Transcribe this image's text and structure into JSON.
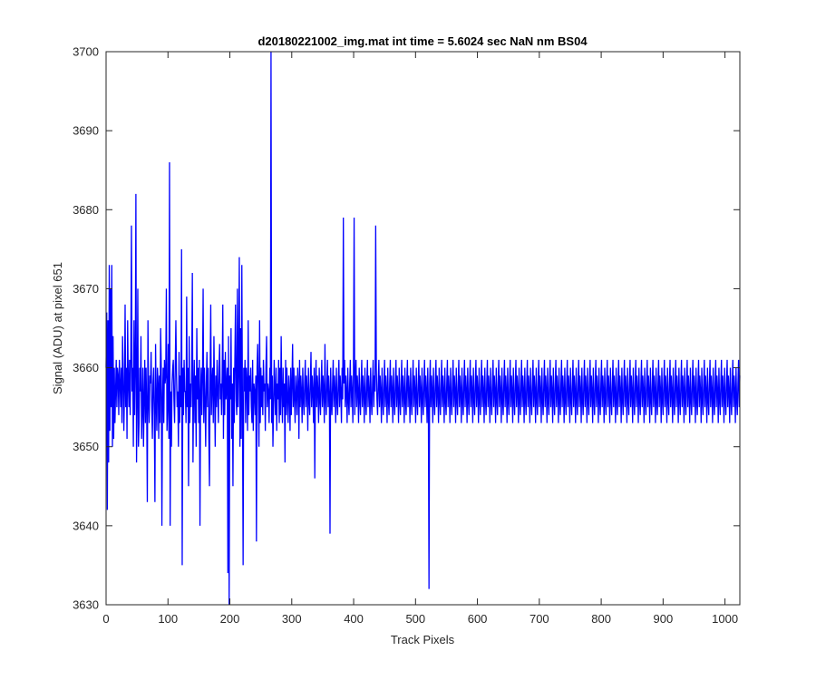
{
  "chart_data": {
    "type": "line",
    "title": "d20180221002_img.mat int time = 5.6024 sec  NaN nm BS04",
    "xlabel": "Track Pixels",
    "ylabel": "Signal (ADU) at pixel 651",
    "xlim": [
      0,
      1024
    ],
    "ylim": [
      3630,
      3700
    ],
    "xticks": [
      0,
      100,
      200,
      300,
      400,
      500,
      600,
      700,
      800,
      900,
      1000
    ],
    "yticks": [
      3630,
      3640,
      3650,
      3660,
      3670,
      3680,
      3690,
      3700
    ],
    "grid": false,
    "legend": "none",
    "series_color": "#0000ff",
    "series": [
      {
        "values": [
          3660,
          3667,
          3642,
          3666,
          3648,
          3673,
          3652,
          3670,
          3655,
          3673,
          3650,
          3664,
          3651,
          3660,
          3653,
          3657,
          3661,
          3655,
          3660,
          3659,
          3654,
          3661,
          3658,
          3655,
          3660,
          3653,
          3664,
          3659,
          3652,
          3657,
          3668,
          3655,
          3660,
          3651,
          3666,
          3658,
          3655,
          3661,
          3654,
          3662,
          3678,
          3657,
          3660,
          3650,
          3666,
          3654,
          3660,
          3682,
          3648,
          3656,
          3670,
          3650,
          3653,
          3660,
          3657,
          3664,
          3651,
          3655,
          3660,
          3650,
          3656,
          3661,
          3653,
          3660,
          3655,
          3643,
          3666,
          3656,
          3653,
          3659,
          3658,
          3662,
          3655,
          3651,
          3658,
          3660,
          3654,
          3643,
          3663,
          3656,
          3652,
          3660,
          3658,
          3651,
          3659,
          3653,
          3665,
          3660,
          3640,
          3656,
          3660,
          3653,
          3661,
          3658,
          3659,
          3670,
          3652,
          3655,
          3663,
          3651,
          3686,
          3640,
          3657,
          3650,
          3658,
          3660,
          3661,
          3656,
          3653,
          3660,
          3666,
          3659,
          3655,
          3657,
          3650,
          3662,
          3653,
          3659,
          3655,
          3675,
          3635,
          3660,
          3654,
          3661,
          3657,
          3657,
          3653,
          3669,
          3655,
          3660,
          3645,
          3664,
          3653,
          3658,
          3655,
          3660,
          3672,
          3648,
          3657,
          3661,
          3653,
          3659,
          3650,
          3665,
          3656,
          3660,
          3653,
          3661,
          3640,
          3657,
          3660,
          3654,
          3659,
          3670,
          3653,
          3660,
          3656,
          3650,
          3658,
          3662,
          3655,
          3660,
          3651,
          3645,
          3659,
          3668,
          3654,
          3658,
          3660,
          3653,
          3664,
          3657,
          3650,
          3659,
          3655,
          3661,
          3657,
          3653,
          3660,
          3663,
          3656,
          3658,
          3654,
          3659,
          3668,
          3651,
          3661,
          3654,
          3662,
          3656,
          3658,
          3660,
          3634,
          3664,
          3630,
          3659,
          3656,
          3665,
          3651,
          3658,
          3645,
          3660,
          3653,
          3661,
          3668,
          3656,
          3654,
          3670,
          3655,
          3660,
          3674,
          3650,
          3665,
          3651,
          3673,
          3655,
          3635,
          3660,
          3657,
          3661,
          3653,
          3660,
          3658,
          3652,
          3666,
          3654,
          3659,
          3657,
          3660,
          3655,
          3653,
          3661,
          3652,
          3658,
          3657,
          3654,
          3659,
          3638,
          3660,
          3663,
          3657,
          3650,
          3666,
          3653,
          3660,
          3655,
          3659,
          3654,
          3661,
          3657,
          3658,
          3652,
          3660,
          3664,
          3655,
          3658,
          3657,
          3653,
          3660,
          3656,
          3700,
          3653,
          3659,
          3650,
          3655,
          3661,
          3657,
          3654,
          3660,
          3652,
          3658,
          3656,
          3661,
          3653,
          3660,
          3654,
          3664,
          3657,
          3653,
          3660,
          3655,
          3658,
          3648,
          3661,
          3654,
          3660,
          3656,
          3653,
          3659,
          3657,
          3652,
          3660,
          3654,
          3658,
          3663,
          3655,
          3660,
          3656,
          3653,
          3659,
          3657,
          3654,
          3660,
          3658,
          3651,
          3661,
          3655,
          3659,
          3657,
          3653,
          3660,
          3656,
          3654,
          3658,
          3661,
          3655,
          3659,
          3657,
          3652,
          3660,
          3656,
          3654,
          3658,
          3662,
          3655,
          3659,
          3657,
          3653,
          3660,
          3646,
          3658,
          3661,
          3655,
          3659,
          3657,
          3653,
          3660,
          3656,
          3654,
          3658,
          3661,
          3655,
          3659,
          3657,
          3653,
          3663,
          3656,
          3654,
          3658,
          3661,
          3655,
          3659,
          3657,
          3639,
          3660,
          3656,
          3654,
          3658,
          3661,
          3655,
          3659,
          3657,
          3653,
          3660,
          3656,
          3654,
          3658,
          3661,
          3655,
          3659,
          3657,
          3653,
          3660,
          3656,
          3679,
          3658,
          3661,
          3655,
          3659,
          3657,
          3653,
          3660,
          3656,
          3654,
          3658,
          3661,
          3655,
          3659,
          3657,
          3653,
          3660,
          3679,
          3654,
          3658,
          3661,
          3655,
          3659,
          3657,
          3653,
          3660,
          3656,
          3654,
          3658,
          3661,
          3655,
          3659,
          3657,
          3653,
          3660,
          3656,
          3654,
          3658,
          3661,
          3655,
          3659,
          3657,
          3653,
          3660,
          3656,
          3654,
          3658,
          3661,
          3655,
          3659,
          3657,
          3678,
          3660,
          3656,
          3654,
          3658,
          3661,
          3655,
          3659,
          3657,
          3653,
          3660,
          3656,
          3654,
          3658,
          3661,
          3655,
          3659,
          3657,
          3653,
          3660,
          3656,
          3654,
          3658,
          3661,
          3655,
          3659,
          3657,
          3653,
          3660,
          3656,
          3654,
          3658,
          3661,
          3655,
          3659,
          3657,
          3653,
          3660,
          3656,
          3654,
          3658,
          3661,
          3655,
          3659,
          3657,
          3653,
          3660,
          3656,
          3654,
          3658,
          3661,
          3655,
          3659,
          3657,
          3653,
          3660,
          3656,
          3654,
          3658,
          3661,
          3655,
          3659,
          3657,
          3653,
          3660,
          3656,
          3654,
          3658,
          3661,
          3655,
          3659,
          3657,
          3653,
          3660,
          3656,
          3654,
          3658,
          3661,
          3655,
          3659,
          3657,
          3653,
          3660,
          3656,
          3632,
          3658,
          3661,
          3655,
          3659,
          3657,
          3653,
          3660,
          3656,
          3654,
          3658,
          3661,
          3655,
          3659,
          3657,
          3653,
          3660,
          3656,
          3654,
          3658,
          3661,
          3655,
          3659,
          3657,
          3653,
          3660,
          3656,
          3654,
          3658,
          3661,
          3655,
          3659,
          3657,
          3653,
          3660,
          3656,
          3654,
          3658,
          3661,
          3655,
          3659,
          3657,
          3653,
          3660,
          3656,
          3654,
          3658,
          3661,
          3655,
          3659,
          3657,
          3653,
          3660,
          3656,
          3654,
          3658,
          3661,
          3655,
          3659,
          3657,
          3653,
          3660,
          3656,
          3654,
          3658,
          3661,
          3655,
          3659,
          3657,
          3653,
          3660,
          3656,
          3654,
          3658,
          3661,
          3655,
          3659,
          3657,
          3653,
          3660,
          3656,
          3654,
          3658,
          3661,
          3655,
          3659,
          3657,
          3653,
          3660,
          3656,
          3654,
          3658,
          3661,
          3655,
          3659,
          3657,
          3653,
          3660,
          3656,
          3654,
          3658,
          3661,
          3655,
          3659,
          3657,
          3653,
          3660,
          3656,
          3654,
          3658,
          3661,
          3655,
          3659,
          3657,
          3653,
          3660,
          3656,
          3654,
          3658,
          3661,
          3655,
          3659,
          3657,
          3653,
          3660,
          3656,
          3654,
          3658,
          3661,
          3655,
          3659,
          3657,
          3653,
          3660,
          3656,
          3654,
          3658,
          3661,
          3655,
          3659,
          3657,
          3653,
          3660,
          3656,
          3654,
          3658,
          3661,
          3655,
          3659,
          3657,
          3653,
          3660,
          3656,
          3654,
          3658,
          3661,
          3655,
          3659,
          3657,
          3653,
          3660,
          3656,
          3654,
          3658,
          3661,
          3655,
          3659,
          3657,
          3653,
          3660,
          3656,
          3654,
          3658,
          3661,
          3655,
          3659,
          3657,
          3653,
          3660,
          3656,
          3654,
          3658,
          3661,
          3655,
          3659,
          3657,
          3653,
          3660,
          3656,
          3654,
          3658,
          3661,
          3655,
          3659,
          3657,
          3653,
          3660,
          3656,
          3654,
          3658,
          3661,
          3655,
          3659,
          3657,
          3653,
          3660,
          3656,
          3654,
          3658,
          3661,
          3655,
          3659,
          3657,
          3653,
          3660,
          3656,
          3654,
          3658,
          3661,
          3655,
          3659,
          3657,
          3653,
          3660,
          3656,
          3654,
          3658,
          3661,
          3655,
          3659,
          3657,
          3653,
          3660,
          3656,
          3654,
          3658,
          3661,
          3655,
          3659,
          3657,
          3653,
          3660,
          3656,
          3654,
          3658,
          3661,
          3655,
          3659,
          3657,
          3653,
          3660,
          3656,
          3654,
          3658,
          3661,
          3655,
          3659,
          3657,
          3653,
          3660,
          3656,
          3654,
          3658,
          3661,
          3655,
          3659,
          3657,
          3653,
          3660,
          3656,
          3654,
          3658,
          3661,
          3655,
          3659,
          3657,
          3653,
          3660,
          3656,
          3654,
          3658,
          3661,
          3655,
          3659,
          3657,
          3653,
          3660,
          3656,
          3654,
          3658,
          3661,
          3655,
          3659,
          3657,
          3653,
          3660,
          3656,
          3654,
          3658,
          3661,
          3655,
          3659,
          3657,
          3653,
          3660,
          3656,
          3654,
          3658,
          3661,
          3655,
          3659,
          3657,
          3653,
          3660,
          3656,
          3654,
          3658,
          3661,
          3655,
          3659,
          3657,
          3653,
          3660,
          3656,
          3654,
          3658,
          3661,
          3655,
          3659,
          3657,
          3653,
          3660,
          3656,
          3654,
          3658,
          3661,
          3655,
          3659,
          3657,
          3653,
          3660,
          3656,
          3654,
          3658,
          3661,
          3655,
          3659,
          3657,
          3653,
          3660,
          3656,
          3654,
          3658,
          3661,
          3655,
          3659,
          3657,
          3653,
          3660,
          3656,
          3654,
          3658,
          3661,
          3655,
          3659,
          3657,
          3653,
          3660,
          3656,
          3654,
          3658,
          3661,
          3655,
          3659,
          3657,
          3653,
          3660,
          3656,
          3654,
          3658,
          3661,
          3655,
          3659,
          3657,
          3653,
          3660,
          3656,
          3654,
          3658,
          3661,
          3655,
          3659,
          3657,
          3653,
          3660,
          3656,
          3654,
          3658,
          3661,
          3655,
          3659,
          3657,
          3653,
          3660,
          3656,
          3654,
          3658,
          3661,
          3655,
          3659,
          3657,
          3653,
          3660,
          3656,
          3654,
          3658,
          3661,
          3655,
          3659,
          3657,
          3653,
          3660,
          3656,
          3654,
          3658,
          3661,
          3655,
          3659,
          3657,
          3653,
          3660,
          3656,
          3654,
          3658,
          3661,
          3655,
          3659,
          3657,
          3653,
          3660,
          3656,
          3654,
          3658,
          3661,
          3655,
          3659,
          3657,
          3653,
          3660,
          3656,
          3654,
          3658,
          3661,
          3655,
          3659,
          3657,
          3653,
          3660,
          3656,
          3654,
          3658,
          3661,
          3655,
          3659,
          3657,
          3653,
          3660,
          3656,
          3654,
          3658,
          3661,
          3655,
          3659,
          3657,
          3653,
          3660,
          3656,
          3654,
          3658,
          3661,
          3655,
          3659,
          3657,
          3653,
          3660,
          3656,
          3654,
          3658,
          3661,
          3655,
          3659
        ]
      }
    ]
  }
}
